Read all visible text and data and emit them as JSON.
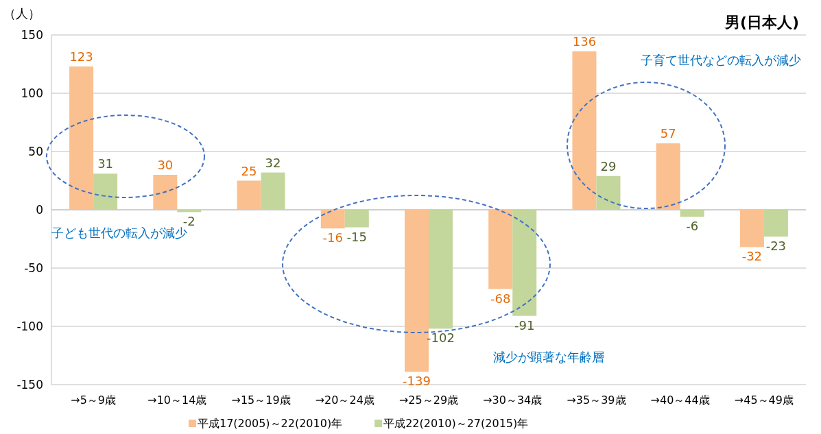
{
  "chart_data": {
    "type": "bar",
    "title": "男(日本人)",
    "ylabel": "（人）",
    "categories": [
      "→5～9歳",
      "→10～14歳",
      "→15～19歳",
      "→20～24歳",
      "→25～29歳",
      "→30～34歳",
      "→35～39歳",
      "→40～44歳",
      "→45～49歳"
    ],
    "series": [
      {
        "name": "平成17(2005)～22(2010)年",
        "color": "#fac090",
        "values": [
          123,
          30,
          25,
          -16,
          -139,
          -68,
          136,
          57,
          -32
        ]
      },
      {
        "name": "平成22(2010)～27(2015)年",
        "color": "#c3d69b",
        "values": [
          31,
          -2,
          32,
          -15,
          -102,
          -91,
          29,
          -6,
          -23
        ]
      }
    ],
    "ylim": [
      -150,
      150
    ],
    "yticks": [
      -150,
      -100,
      -50,
      0,
      50,
      100,
      150
    ],
    "grid": "y",
    "legend": "bottom",
    "data_labels": true,
    "annotations": [
      "子ども世代の転入が減少",
      "減少が顕著な年齢層",
      "子育て世代などの転入が減少"
    ]
  }
}
